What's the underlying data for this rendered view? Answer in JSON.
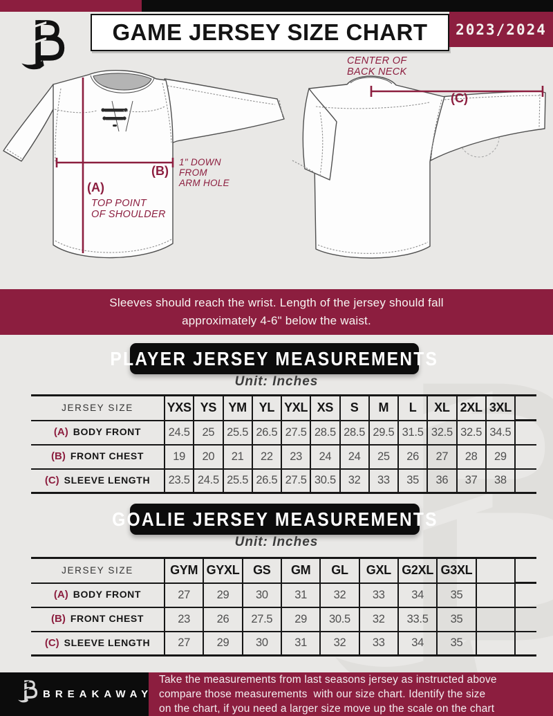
{
  "header": {
    "title": "GAME JERSEY SIZE CHART",
    "season": "2023/2024"
  },
  "diagram": {
    "front": {
      "a_key": "(A)",
      "a_note": "TOP POINT\nOF SHOULDER",
      "b_key": "(B)",
      "b_note": "1\" DOWN\nFROM\nARM HOLE"
    },
    "back": {
      "c_key": "(C)",
      "c_note": "CENTER OF\nBACK NECK"
    }
  },
  "notice": "Sleeves should reach the wrist. Length of the jersey should fall\napproximately 4-6\" below the waist.",
  "player_table": {
    "title": "PLAYER JERSEY MEASUREMENTS",
    "unit": "Unit: Inches",
    "header_label": "JERSEY SIZE",
    "sizes": [
      "YXS",
      "YS",
      "YM",
      "YL",
      "YXL",
      "XS",
      "S",
      "M",
      "L",
      "XL",
      "2XL",
      "3XL"
    ],
    "rows": [
      {
        "key": "(A)",
        "label": "BODY FRONT",
        "values": [
          "24.5",
          "25",
          "25.5",
          "26.5",
          "27.5",
          "28.5",
          "28.5",
          "29.5",
          "31.5",
          "32.5",
          "32.5",
          "34.5"
        ]
      },
      {
        "key": "(B)",
        "label": "FRONT CHEST",
        "values": [
          "19",
          "20",
          "21",
          "22",
          "23",
          "24",
          "24",
          "25",
          "26",
          "27",
          "28",
          "29"
        ]
      },
      {
        "key": "(C)",
        "label": "SLEEVE LENGTH",
        "values": [
          "23.5",
          "24.5",
          "25.5",
          "26.5",
          "27.5",
          "30.5",
          "32",
          "33",
          "35",
          "36",
          "37",
          "38"
        ]
      }
    ]
  },
  "goalie_table": {
    "title": "GOALIE JERSEY MEASUREMENTS",
    "unit": "Unit: Inches",
    "header_label": "JERSEY SIZE",
    "sizes": [
      "GYM",
      "GYXL",
      "GS",
      "GM",
      "GL",
      "GXL",
      "G2XL",
      "G3XL",
      ""
    ],
    "rows": [
      {
        "key": "(A)",
        "label": "BODY FRONT",
        "values": [
          "27",
          "29",
          "30",
          "31",
          "32",
          "33",
          "34",
          "35",
          ""
        ]
      },
      {
        "key": "(B)",
        "label": "FRONT CHEST",
        "values": [
          "23",
          "26",
          "27.5",
          "29",
          "30.5",
          "32",
          "33.5",
          "35",
          ""
        ]
      },
      {
        "key": "(C)",
        "label": "SLEEVE LENGTH",
        "values": [
          "27",
          "29",
          "30",
          "31",
          "32",
          "33",
          "34",
          "35",
          ""
        ]
      }
    ]
  },
  "footer": {
    "brand": "BREAKAWAY",
    "note": "Take the measurements from last seasons jersey as instructed above\ncompare those measurements  with our size chart. Identify the size\non the chart, if you need a larger size move up the scale on the chart"
  },
  "colors": {
    "maroon": "#8c1e3f",
    "black": "#0c0c0c",
    "background": "#e9e8e6"
  }
}
